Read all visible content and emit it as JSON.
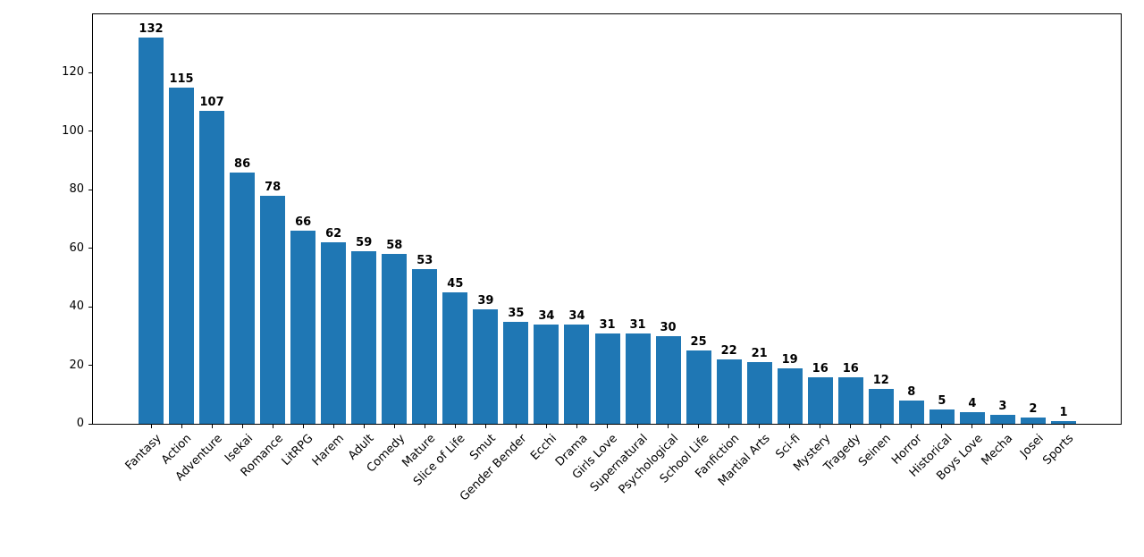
{
  "chart_data": {
    "type": "bar",
    "title": "",
    "xlabel": "",
    "ylabel": "",
    "categories": [
      "Fantasy",
      "Action",
      "Adventure",
      "Isekai",
      "Romance",
      "LitRPG",
      "Harem",
      "Adult",
      "Comedy",
      "Mature",
      "Slice of Life",
      "Smut",
      "Gender Bender",
      "Ecchi",
      "Drama",
      "Girls Love",
      "Supernatural",
      "Psychological",
      "School Life",
      "Fanfiction",
      "Martial Arts",
      "Sci-fi",
      "Mystery",
      "Tragedy",
      "Seinen",
      "Horror",
      "Historical",
      "Boys Love",
      "Mecha",
      "Josei",
      "Sports"
    ],
    "values": [
      132,
      115,
      107,
      86,
      78,
      66,
      62,
      59,
      58,
      53,
      45,
      39,
      35,
      34,
      34,
      31,
      31,
      30,
      25,
      22,
      21,
      19,
      16,
      16,
      12,
      8,
      5,
      4,
      3,
      2,
      1
    ],
    "value_labels_shown": true,
    "bar_color": "#1f77b4",
    "ylim": [
      0,
      140
    ],
    "yticks": [
      0,
      20,
      40,
      60,
      80,
      100,
      120
    ],
    "grid": false,
    "legend": null,
    "x_tick_rotation_deg": 45
  }
}
